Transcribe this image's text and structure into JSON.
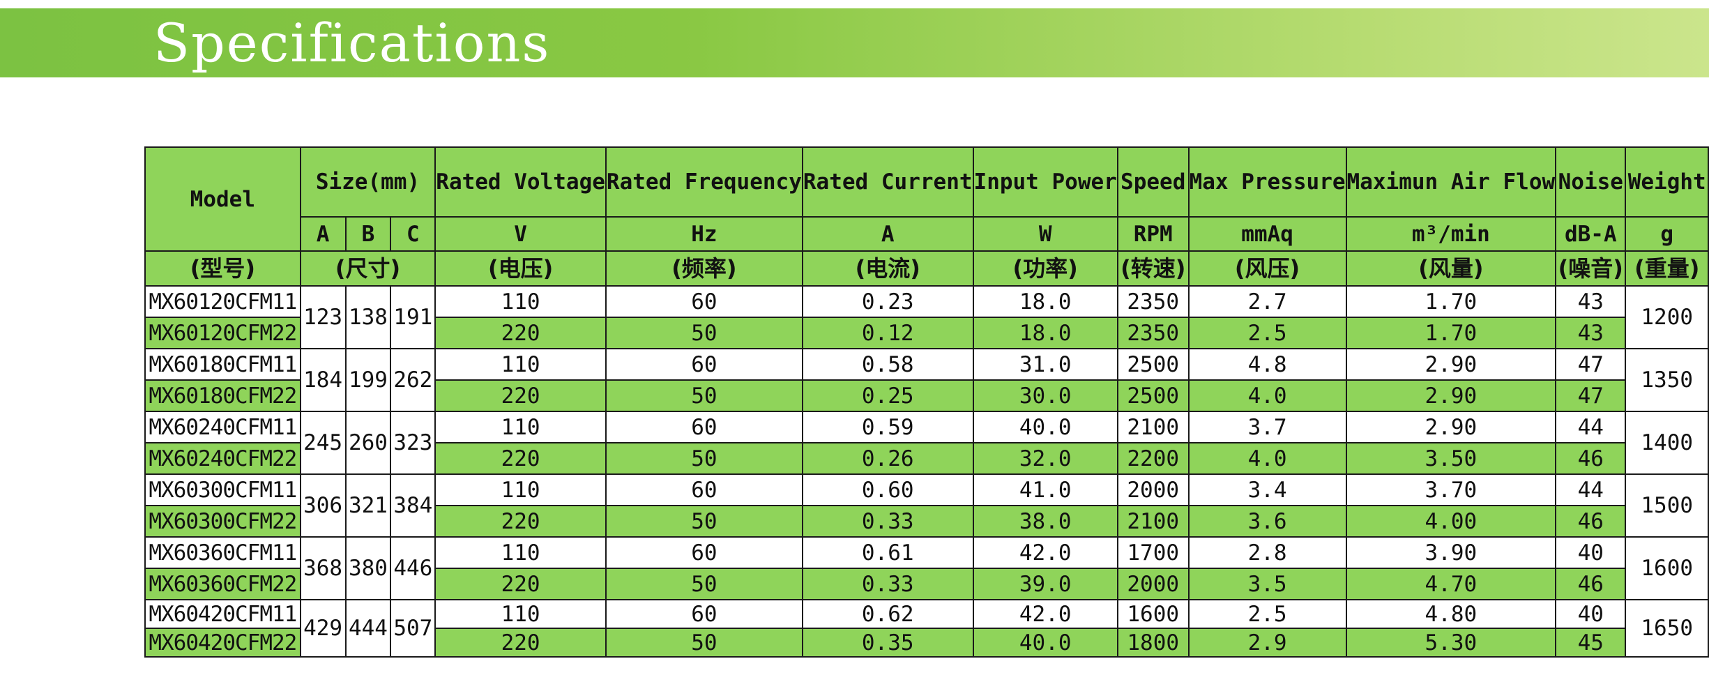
{
  "title": "Specifications",
  "colors": {
    "banner_start": "#7cc242",
    "banner_end": "#cbe58c",
    "header_fill": "#8fd45a",
    "grid_line": "#1a1a1a"
  },
  "header": {
    "model": "Model",
    "size": "Size(mm)",
    "rated_voltage": "Rated Voltage",
    "rated_frequency": "Rated Frequency",
    "rated_current": "Rated Current",
    "input_power": "Input Power",
    "speed": "Speed",
    "max_pressure": "Max Pressure",
    "max_air_flow": "Maximun Air Flow",
    "noise": "Noise",
    "weight": "Weight"
  },
  "units": {
    "a": "A",
    "b": "B",
    "c": "C",
    "voltage": "V",
    "frequency": "Hz",
    "current": "A",
    "power": "W",
    "speed": "RPM",
    "pressure": "mmAq",
    "air_flow": "m³/min",
    "noise": "dB-A",
    "weight": "g"
  },
  "chinese_labels": {
    "model": "(型号)",
    "size": "(尺寸)",
    "voltage": "(电压)",
    "frequency": "(频率)",
    "current": "(电流)",
    "power": "(功率)",
    "speed": "(转速)",
    "pressure": "(风压)",
    "air_flow": "(风量)",
    "noise": "(噪音)",
    "weight": "(重量)"
  },
  "groups": [
    {
      "a": "123",
      "b": "138",
      "c": "191",
      "weight": "1200",
      "rows": [
        {
          "model": "MX60120CFM11",
          "voltage": "110",
          "frequency": "60",
          "current": "0.23",
          "power": "18.0",
          "speed": "2350",
          "pressure": "2.7",
          "air_flow": "1.70",
          "noise": "43"
        },
        {
          "model": "MX60120CFM22",
          "voltage": "220",
          "frequency": "50",
          "current": "0.12",
          "power": "18.0",
          "speed": "2350",
          "pressure": "2.5",
          "air_flow": "1.70",
          "noise": "43"
        }
      ]
    },
    {
      "a": "184",
      "b": "199",
      "c": "262",
      "weight": "1350",
      "rows": [
        {
          "model": "MX60180CFM11",
          "voltage": "110",
          "frequency": "60",
          "current": "0.58",
          "power": "31.0",
          "speed": "2500",
          "pressure": "4.8",
          "air_flow": "2.90",
          "noise": "47"
        },
        {
          "model": "MX60180CFM22",
          "voltage": "220",
          "frequency": "50",
          "current": "0.25",
          "power": "30.0",
          "speed": "2500",
          "pressure": "4.0",
          "air_flow": "2.90",
          "noise": "47"
        }
      ]
    },
    {
      "a": "245",
      "b": "260",
      "c": "323",
      "weight": "1400",
      "rows": [
        {
          "model": "MX60240CFM11",
          "voltage": "110",
          "frequency": "60",
          "current": "0.59",
          "power": "40.0",
          "speed": "2100",
          "pressure": "3.7",
          "air_flow": "2.90",
          "noise": "44"
        },
        {
          "model": "MX60240CFM22",
          "voltage": "220",
          "frequency": "50",
          "current": "0.26",
          "power": "32.0",
          "speed": "2200",
          "pressure": "4.0",
          "air_flow": "3.50",
          "noise": "46"
        }
      ]
    },
    {
      "a": "306",
      "b": "321",
      "c": "384",
      "weight": "1500",
      "rows": [
        {
          "model": "MX60300CFM11",
          "voltage": "110",
          "frequency": "60",
          "current": "0.60",
          "power": "41.0",
          "speed": "2000",
          "pressure": "3.4",
          "air_flow": "3.70",
          "noise": "44"
        },
        {
          "model": "MX60300CFM22",
          "voltage": "220",
          "frequency": "50",
          "current": "0.33",
          "power": "38.0",
          "speed": "2100",
          "pressure": "3.6",
          "air_flow": "4.00",
          "noise": "46"
        }
      ]
    },
    {
      "a": "368",
      "b": "380",
      "c": "446",
      "weight": "1600",
      "rows": [
        {
          "model": "MX60360CFM11",
          "voltage": "110",
          "frequency": "60",
          "current": "0.61",
          "power": "42.0",
          "speed": "1700",
          "pressure": "2.8",
          "air_flow": "3.90",
          "noise": "40"
        },
        {
          "model": "MX60360CFM22",
          "voltage": "220",
          "frequency": "50",
          "current": "0.33",
          "power": "39.0",
          "speed": "2000",
          "pressure": "3.5",
          "air_flow": "4.70",
          "noise": "46"
        }
      ]
    },
    {
      "a": "429",
      "b": "444",
      "c": "507",
      "weight": "1650",
      "rows": [
        {
          "model": "MX60420CFM11",
          "voltage": "110",
          "frequency": "60",
          "current": "0.62",
          "power": "42.0",
          "speed": "1600",
          "pressure": "2.5",
          "air_flow": "4.80",
          "noise": "40"
        },
        {
          "model": "MX60420CFM22",
          "voltage": "220",
          "frequency": "50",
          "current": "0.35",
          "power": "40.0",
          "speed": "1800",
          "pressure": "2.9",
          "air_flow": "5.30",
          "noise": "45"
        }
      ]
    }
  ]
}
